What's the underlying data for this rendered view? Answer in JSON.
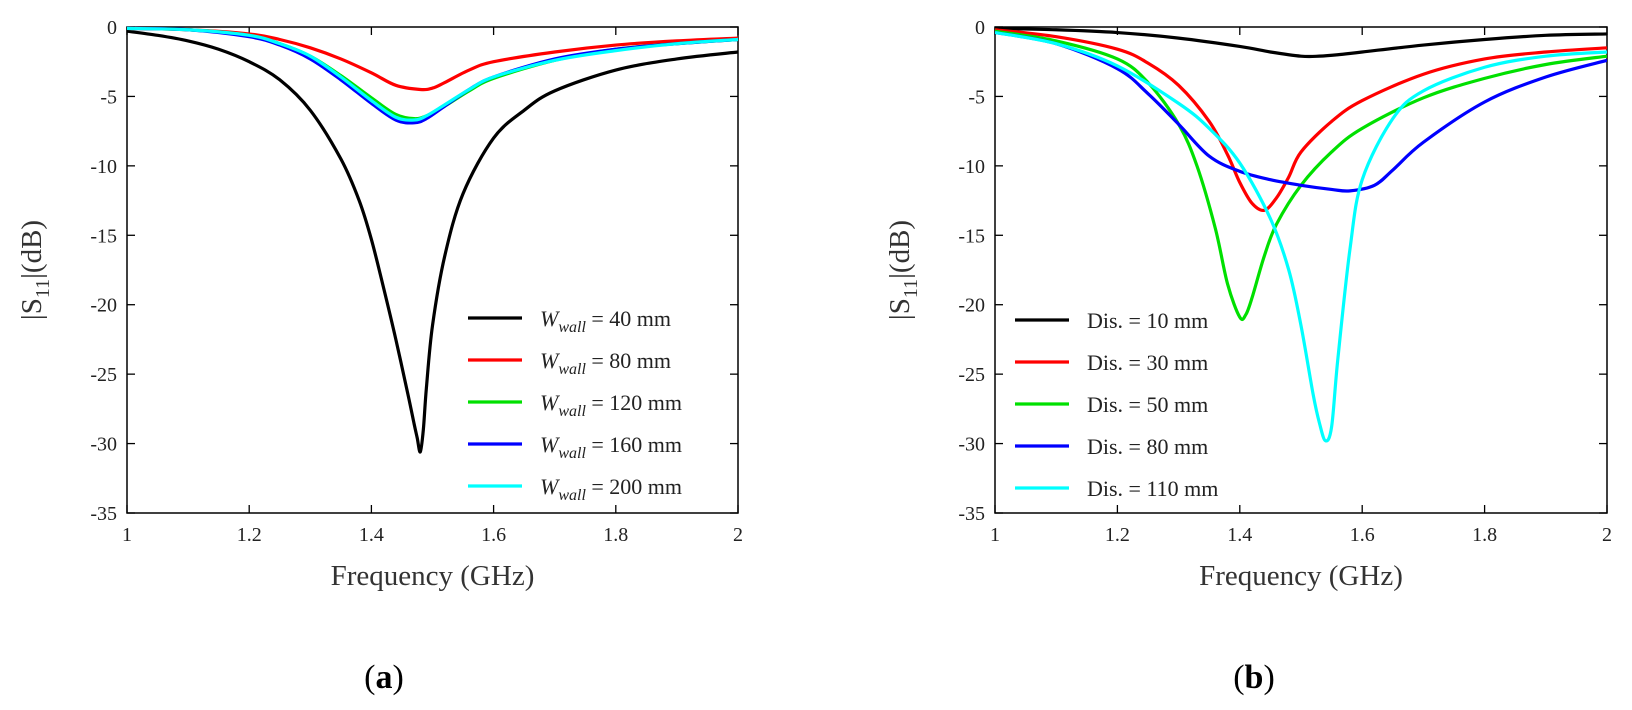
{
  "colors": {
    "black": "#000000",
    "red": "#ff0000",
    "green": "#00e000",
    "blue": "#0000ff",
    "cyan": "#00ffff"
  },
  "chart_data": [
    {
      "type": "line",
      "panel_label": "a",
      "xlabel": "Frequency (GHz)",
      "ylabel": "|S11|(dB)",
      "ylabel_parts": {
        "prefix": "|S",
        "sub": "11",
        "suffix": "|(dB)"
      },
      "xlim": [
        1,
        2
      ],
      "ylim": [
        -35,
        0
      ],
      "xticks": [
        1,
        1.2,
        1.4,
        1.6,
        1.8,
        2
      ],
      "xtick_labels": [
        "1",
        "1.2",
        "1.4",
        "1.6",
        "1.8",
        "2"
      ],
      "yticks": [
        0,
        -5,
        -10,
        -15,
        -20,
        -25,
        -30,
        -35
      ],
      "ytick_labels": [
        "0",
        "-5",
        "-10",
        "-15",
        "-20",
        "-25",
        "-30",
        "-35"
      ],
      "legend_position": "lower-right",
      "series": [
        {
          "name": "W_wall = 40 mm",
          "legend": {
            "var": "W",
            "sub": "wall",
            "rest": " = 40 mm"
          },
          "color": "#000000",
          "x": [
            1,
            1.05,
            1.1,
            1.15,
            1.2,
            1.25,
            1.3,
            1.35,
            1.38,
            1.4,
            1.42,
            1.44,
            1.46,
            1.47,
            1.475,
            1.48,
            1.485,
            1.49,
            1.5,
            1.52,
            1.55,
            1.6,
            1.65,
            1.7,
            1.8,
            1.9,
            2
          ],
          "y": [
            -0.3,
            -0.6,
            -1.0,
            -1.6,
            -2.5,
            -3.8,
            -6.0,
            -9.5,
            -12.5,
            -15.3,
            -18.8,
            -22.5,
            -26.5,
            -28.6,
            -29.6,
            -30.6,
            -29.0,
            -26.0,
            -21.5,
            -16.5,
            -12.0,
            -8.0,
            -6.0,
            -4.6,
            -3.1,
            -2.3,
            -1.8
          ]
        },
        {
          "name": "W_wall = 80 mm",
          "legend": {
            "var": "W",
            "sub": "wall",
            "rest": " = 80 mm"
          },
          "color": "#ff0000",
          "x": [
            1,
            1.1,
            1.2,
            1.25,
            1.3,
            1.35,
            1.4,
            1.44,
            1.48,
            1.5,
            1.52,
            1.56,
            1.6,
            1.7,
            1.8,
            1.9,
            2
          ],
          "y": [
            -0.1,
            -0.2,
            -0.5,
            -0.9,
            -1.5,
            -2.3,
            -3.3,
            -4.2,
            -4.5,
            -4.4,
            -4.0,
            -3.1,
            -2.5,
            -1.8,
            -1.3,
            -1.0,
            -0.8
          ]
        },
        {
          "name": "W_wall = 120 mm",
          "legend": {
            "var": "W",
            "sub": "wall",
            "rest": " = 120 mm"
          },
          "color": "#00e000",
          "x": [
            1,
            1.1,
            1.2,
            1.25,
            1.3,
            1.35,
            1.4,
            1.44,
            1.47,
            1.49,
            1.52,
            1.56,
            1.6,
            1.7,
            1.8,
            1.9,
            2
          ],
          "y": [
            -0.1,
            -0.2,
            -0.6,
            -1.2,
            -2.1,
            -3.5,
            -5.1,
            -6.3,
            -6.6,
            -6.4,
            -5.7,
            -4.6,
            -3.7,
            -2.4,
            -1.6,
            -1.2,
            -0.9
          ]
        },
        {
          "name": "W_wall = 160 mm",
          "legend": {
            "var": "W",
            "sub": "wall",
            "rest": " = 160 mm"
          },
          "color": "#0000ff",
          "x": [
            1,
            1.1,
            1.2,
            1.25,
            1.3,
            1.35,
            1.4,
            1.44,
            1.47,
            1.49,
            1.52,
            1.56,
            1.6,
            1.7,
            1.8,
            1.9,
            2
          ],
          "y": [
            -0.1,
            -0.2,
            -0.7,
            -1.3,
            -2.3,
            -3.8,
            -5.5,
            -6.7,
            -6.9,
            -6.6,
            -5.7,
            -4.5,
            -3.6,
            -2.3,
            -1.6,
            -1.2,
            -0.9
          ]
        },
        {
          "name": "W_wall = 200 mm",
          "legend": {
            "var": "W",
            "sub": "wall",
            "rest": " = 200 mm"
          },
          "color": "#00ffff",
          "x": [
            1,
            1.1,
            1.2,
            1.25,
            1.3,
            1.35,
            1.4,
            1.44,
            1.47,
            1.49,
            1.52,
            1.56,
            1.6,
            1.7,
            1.8,
            1.9,
            2
          ],
          "y": [
            -0.1,
            -0.2,
            -0.6,
            -1.2,
            -2.1,
            -3.6,
            -5.3,
            -6.5,
            -6.7,
            -6.4,
            -5.6,
            -4.5,
            -3.6,
            -2.4,
            -1.7,
            -1.2,
            -0.9
          ]
        }
      ]
    },
    {
      "type": "line",
      "panel_label": "b",
      "xlabel": "Frequency (GHz)",
      "ylabel": "|S11|(dB)",
      "ylabel_parts": {
        "prefix": "|S",
        "sub": "11",
        "suffix": "|(dB)"
      },
      "xlim": [
        1,
        2
      ],
      "ylim": [
        -35,
        0
      ],
      "xticks": [
        1,
        1.2,
        1.4,
        1.6,
        1.8,
        2
      ],
      "xtick_labels": [
        "1",
        "1.2",
        "1.4",
        "1.6",
        "1.8",
        "2"
      ],
      "yticks": [
        0,
        -5,
        -10,
        -15,
        -20,
        -25,
        -30,
        -35
      ],
      "ytick_labels": [
        "0",
        "-5",
        "-10",
        "-15",
        "-20",
        "-25",
        "-30",
        "-35"
      ],
      "legend_position": "lower-left",
      "series": [
        {
          "name": "Dis. = 10 mm",
          "legend": {
            "var": "",
            "sub": "",
            "rest": "Dis. = 10 mm"
          },
          "color": "#000000",
          "x": [
            1,
            1.1,
            1.2,
            1.3,
            1.4,
            1.45,
            1.5,
            1.53,
            1.56,
            1.6,
            1.7,
            1.8,
            1.9,
            2
          ],
          "y": [
            -0.1,
            -0.2,
            -0.4,
            -0.8,
            -1.4,
            -1.8,
            -2.1,
            -2.1,
            -2.0,
            -1.8,
            -1.3,
            -0.9,
            -0.6,
            -0.5
          ]
        },
        {
          "name": "Dis. = 30 mm",
          "legend": {
            "var": "",
            "sub": "",
            "rest": "Dis. = 30 mm"
          },
          "color": "#ff0000",
          "x": [
            1,
            1.1,
            1.2,
            1.25,
            1.3,
            1.35,
            1.38,
            1.4,
            1.42,
            1.44,
            1.46,
            1.48,
            1.5,
            1.55,
            1.6,
            1.7,
            1.8,
            1.9,
            2
          ],
          "y": [
            -0.2,
            -0.7,
            -1.6,
            -2.6,
            -4.2,
            -6.8,
            -9.2,
            -11.2,
            -12.7,
            -13.2,
            -12.3,
            -10.8,
            -9.0,
            -6.8,
            -5.3,
            -3.4,
            -2.3,
            -1.8,
            -1.5
          ]
        },
        {
          "name": "Dis. = 50 mm",
          "legend": {
            "var": "",
            "sub": "",
            "rest": "Dis. = 50 mm"
          },
          "color": "#00e000",
          "x": [
            1,
            1.1,
            1.2,
            1.25,
            1.3,
            1.33,
            1.36,
            1.38,
            1.4,
            1.41,
            1.42,
            1.44,
            1.46,
            1.5,
            1.55,
            1.6,
            1.7,
            1.8,
            1.9,
            2
          ],
          "y": [
            -0.3,
            -1.0,
            -2.3,
            -4.0,
            -7.0,
            -10.0,
            -14.5,
            -18.5,
            -20.9,
            -20.7,
            -19.5,
            -16.5,
            -14.2,
            -11.4,
            -9.0,
            -7.3,
            -5.1,
            -3.7,
            -2.7,
            -2.1
          ]
        },
        {
          "name": "Dis. = 80 mm",
          "legend": {
            "var": "",
            "sub": "",
            "rest": "Dis. = 80 mm"
          },
          "color": "#0000ff",
          "x": [
            1,
            1.1,
            1.2,
            1.25,
            1.3,
            1.35,
            1.4,
            1.45,
            1.5,
            1.55,
            1.58,
            1.62,
            1.65,
            1.7,
            1.8,
            1.9,
            2
          ],
          "y": [
            -0.4,
            -1.2,
            -3.0,
            -4.8,
            -7.0,
            -9.3,
            -10.4,
            -11.0,
            -11.4,
            -11.7,
            -11.8,
            -11.4,
            -10.3,
            -8.3,
            -5.4,
            -3.6,
            -2.4
          ]
        },
        {
          "name": "Dis. = 110 mm",
          "legend": {
            "var": "",
            "sub": "",
            "rest": "Dis. = 110 mm"
          },
          "color": "#00ffff",
          "x": [
            1,
            1.1,
            1.2,
            1.3,
            1.35,
            1.4,
            1.45,
            1.48,
            1.5,
            1.52,
            1.53,
            1.54,
            1.55,
            1.56,
            1.58,
            1.6,
            1.65,
            1.7,
            1.8,
            1.9,
            2
          ],
          "y": [
            -0.4,
            -1.2,
            -2.8,
            -5.5,
            -7.3,
            -9.8,
            -13.8,
            -17.5,
            -21.5,
            -26.5,
            -28.5,
            -29.8,
            -28.8,
            -24.0,
            -16.0,
            -11.0,
            -6.6,
            -4.6,
            -2.9,
            -2.1,
            -1.8
          ]
        }
      ]
    }
  ]
}
